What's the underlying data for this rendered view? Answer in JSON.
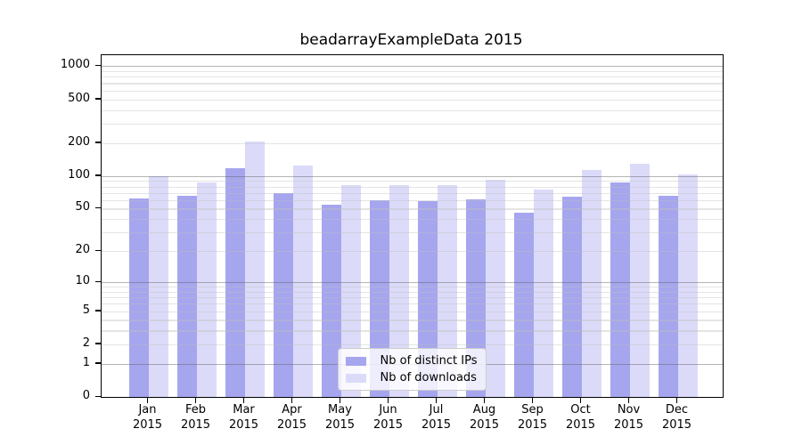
{
  "chart_data": {
    "type": "bar",
    "title": "beadarrayExampleData 2015",
    "categories": [
      "Jan",
      "Feb",
      "Mar",
      "Apr",
      "May",
      "Jun",
      "Jul",
      "Aug",
      "Sep",
      "Oct",
      "Nov",
      "Dec"
    ],
    "x_year": "2015",
    "series": [
      {
        "name": "Nb of distinct IPs",
        "color": "#a6a6ee",
        "values": [
          62,
          66,
          117,
          70,
          54,
          60,
          59,
          61,
          46,
          65,
          87,
          66
        ]
      },
      {
        "name": "Nb of downloads",
        "color": "#dbdbf9",
        "values": [
          100,
          87,
          205,
          125,
          83,
          83,
          82,
          93,
          75,
          113,
          130,
          103
        ]
      }
    ],
    "y_axis": {
      "scale": "log10(1+x)",
      "tick_values": [
        0,
        1,
        2,
        5,
        10,
        20,
        50,
        100,
        200,
        500,
        1000
      ],
      "tick_labels": [
        "0",
        "1",
        "2",
        "5",
        "10",
        "20",
        "50",
        "100",
        "200",
        "500",
        "1000"
      ],
      "ylim": [
        0,
        1240
      ],
      "grid": "on",
      "major_grid_at": [
        1,
        10,
        100,
        1000
      ]
    },
    "legend": {
      "position": "lower center"
    }
  }
}
